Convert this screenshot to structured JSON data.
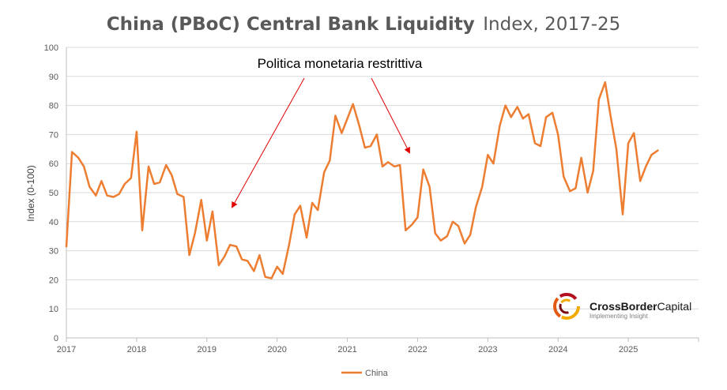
{
  "chart_data": {
    "type": "line",
    "title_bold": "China (PBoC) Central Bank Liquidity",
    "title_rest": "Index, 2017-25",
    "ylabel": "Index (0-100)",
    "xlabel": "",
    "ylim": [
      0,
      100
    ],
    "y_ticks": [
      "0",
      "10",
      "20",
      "30",
      "40",
      "50",
      "60",
      "70",
      "80",
      "90",
      "100"
    ],
    "x_ticks": [
      "2017",
      "2018",
      "2019",
      "2020",
      "2021",
      "2022",
      "2023",
      "2024",
      "2025"
    ],
    "x_tick_values": [
      2017,
      2018,
      2019,
      2020,
      2021,
      2022,
      2023,
      2024,
      2025
    ],
    "xlim": [
      2017,
      2026
    ],
    "grid": "horizontal",
    "legend_position": "bottom",
    "annotation": "Politica monetaria restrittiva",
    "series": [
      {
        "name": "China",
        "color": "#ED7D31",
        "x": [
          2017.0,
          2017.08,
          2017.17,
          2017.25,
          2017.33,
          2017.42,
          2017.5,
          2017.58,
          2017.67,
          2017.75,
          2017.83,
          2017.92,
          2018.0,
          2018.08,
          2018.17,
          2018.25,
          2018.33,
          2018.42,
          2018.5,
          2018.58,
          2018.67,
          2018.75,
          2018.83,
          2018.92,
          2019.0,
          2019.08,
          2019.17,
          2019.25,
          2019.33,
          2019.42,
          2019.5,
          2019.58,
          2019.67,
          2019.75,
          2019.83,
          2019.92,
          2020.0,
          2020.08,
          2020.17,
          2020.25,
          2020.33,
          2020.42,
          2020.5,
          2020.58,
          2020.67,
          2020.75,
          2020.83,
          2020.92,
          2021.0,
          2021.08,
          2021.17,
          2021.25,
          2021.33,
          2021.42,
          2021.5,
          2021.58,
          2021.67,
          2021.75,
          2021.83,
          2021.92,
          2022.0,
          2022.08,
          2022.17,
          2022.25,
          2022.33,
          2022.42,
          2022.5,
          2022.58,
          2022.67,
          2022.75,
          2022.83,
          2022.92,
          2023.0,
          2023.08,
          2023.17,
          2023.25,
          2023.33,
          2023.42,
          2023.5,
          2023.58,
          2023.67,
          2023.75,
          2023.83,
          2023.92,
          2024.0,
          2024.08,
          2024.17,
          2024.25,
          2024.33,
          2024.42,
          2024.5,
          2024.58,
          2024.67,
          2024.75,
          2024.83,
          2024.92,
          2025.0,
          2025.08,
          2025.17,
          2025.25,
          2025.33,
          2025.42
        ],
        "y": [
          31.5,
          64,
          62,
          59,
          52,
          49,
          54,
          49,
          48.5,
          49.5,
          53,
          55,
          71,
          37,
          59,
          53,
          53.5,
          59.5,
          56,
          49.5,
          48.5,
          28.5,
          36,
          47.5,
          33.5,
          43.5,
          25,
          28,
          32,
          31.5,
          27,
          26.5,
          23,
          28.5,
          21,
          20.5,
          24.5,
          22,
          32,
          42.5,
          45.5,
          34.5,
          46.5,
          44,
          57,
          61,
          76.5,
          70.5,
          75.5,
          80.5,
          73,
          65.5,
          66,
          70,
          59,
          60.5,
          59,
          59.5,
          37,
          39,
          41.5,
          58,
          52,
          36,
          33.5,
          35,
          40,
          38.5,
          32.5,
          35.5,
          45,
          52,
          63,
          60,
          73,
          80,
          76,
          79.5,
          75.5,
          77,
          67,
          66,
          76,
          77.5,
          70,
          55.5,
          50.5,
          51.5,
          62,
          50,
          57.5,
          82,
          88,
          76,
          65,
          42.5,
          67,
          70.5,
          54,
          59,
          63,
          64.5
        ]
      }
    ]
  },
  "logo": {
    "name_part1": "CrossBorder",
    "name_part2": "Capital",
    "tagline": "Implementing Insight"
  }
}
